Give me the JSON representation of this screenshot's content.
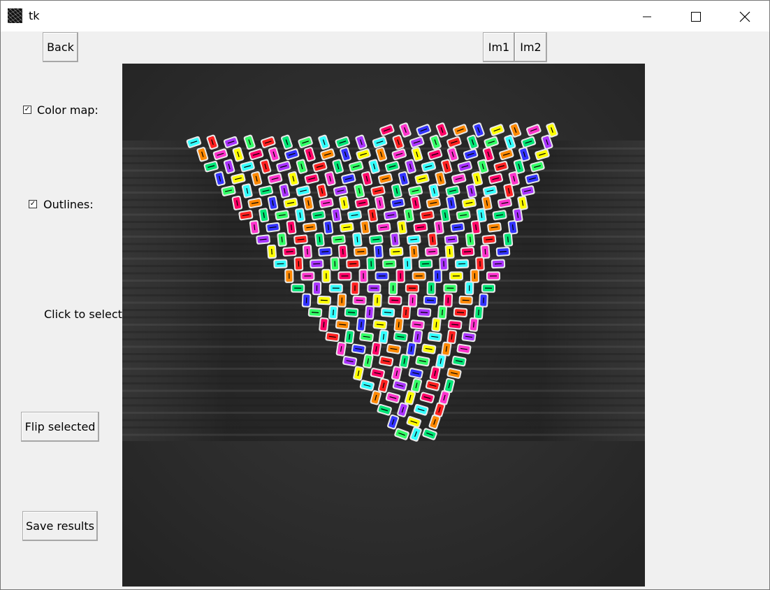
{
  "window": {
    "title": "tk",
    "icons": [
      "app-icon",
      "minimize-icon",
      "maximize-icon",
      "close-icon"
    ]
  },
  "buttons": {
    "back": "Back",
    "im1": "Im1",
    "im2": "Im2",
    "flip": "Flip selected",
    "save": "Save results"
  },
  "options": {
    "color_map": {
      "label": "Color map:",
      "checked": true
    },
    "outlines": {
      "label": "Outlines:",
      "checked": true
    }
  },
  "hint": "Click to select",
  "palette": [
    "#ffff00",
    "#ff2020",
    "#3333ff",
    "#33ffff",
    "#ff33cc",
    "#33ff66",
    "#ff8800",
    "#aa33ff",
    "#ff0066",
    "#00e676"
  ]
}
